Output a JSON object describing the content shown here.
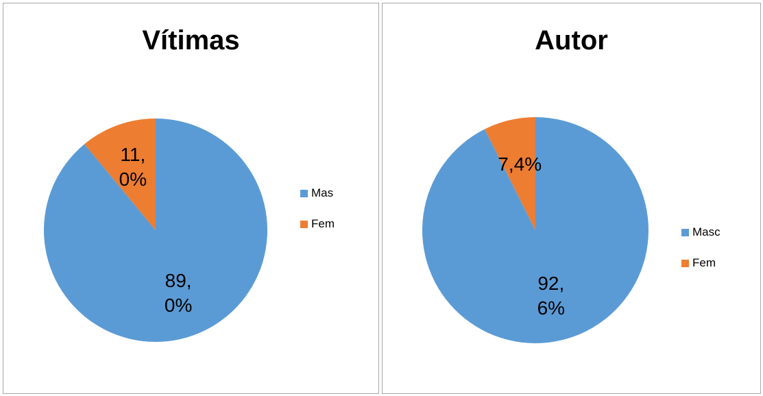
{
  "chart_data": [
    {
      "type": "pie",
      "title": "Vítimas",
      "categories": [
        "Mas",
        "Fem"
      ],
      "values": [
        89.0,
        11.0
      ],
      "value_labels": [
        "89,0%",
        "11,0%"
      ],
      "colors": [
        "#5b9bd5",
        "#ed7d31"
      ]
    },
    {
      "type": "pie",
      "title": "Autor",
      "categories": [
        "Masc",
        "Fem"
      ],
      "values": [
        92.6,
        7.4
      ],
      "value_labels": [
        "92,6%",
        "7,4%"
      ],
      "colors": [
        "#5b9bd5",
        "#ed7d31"
      ]
    }
  ]
}
